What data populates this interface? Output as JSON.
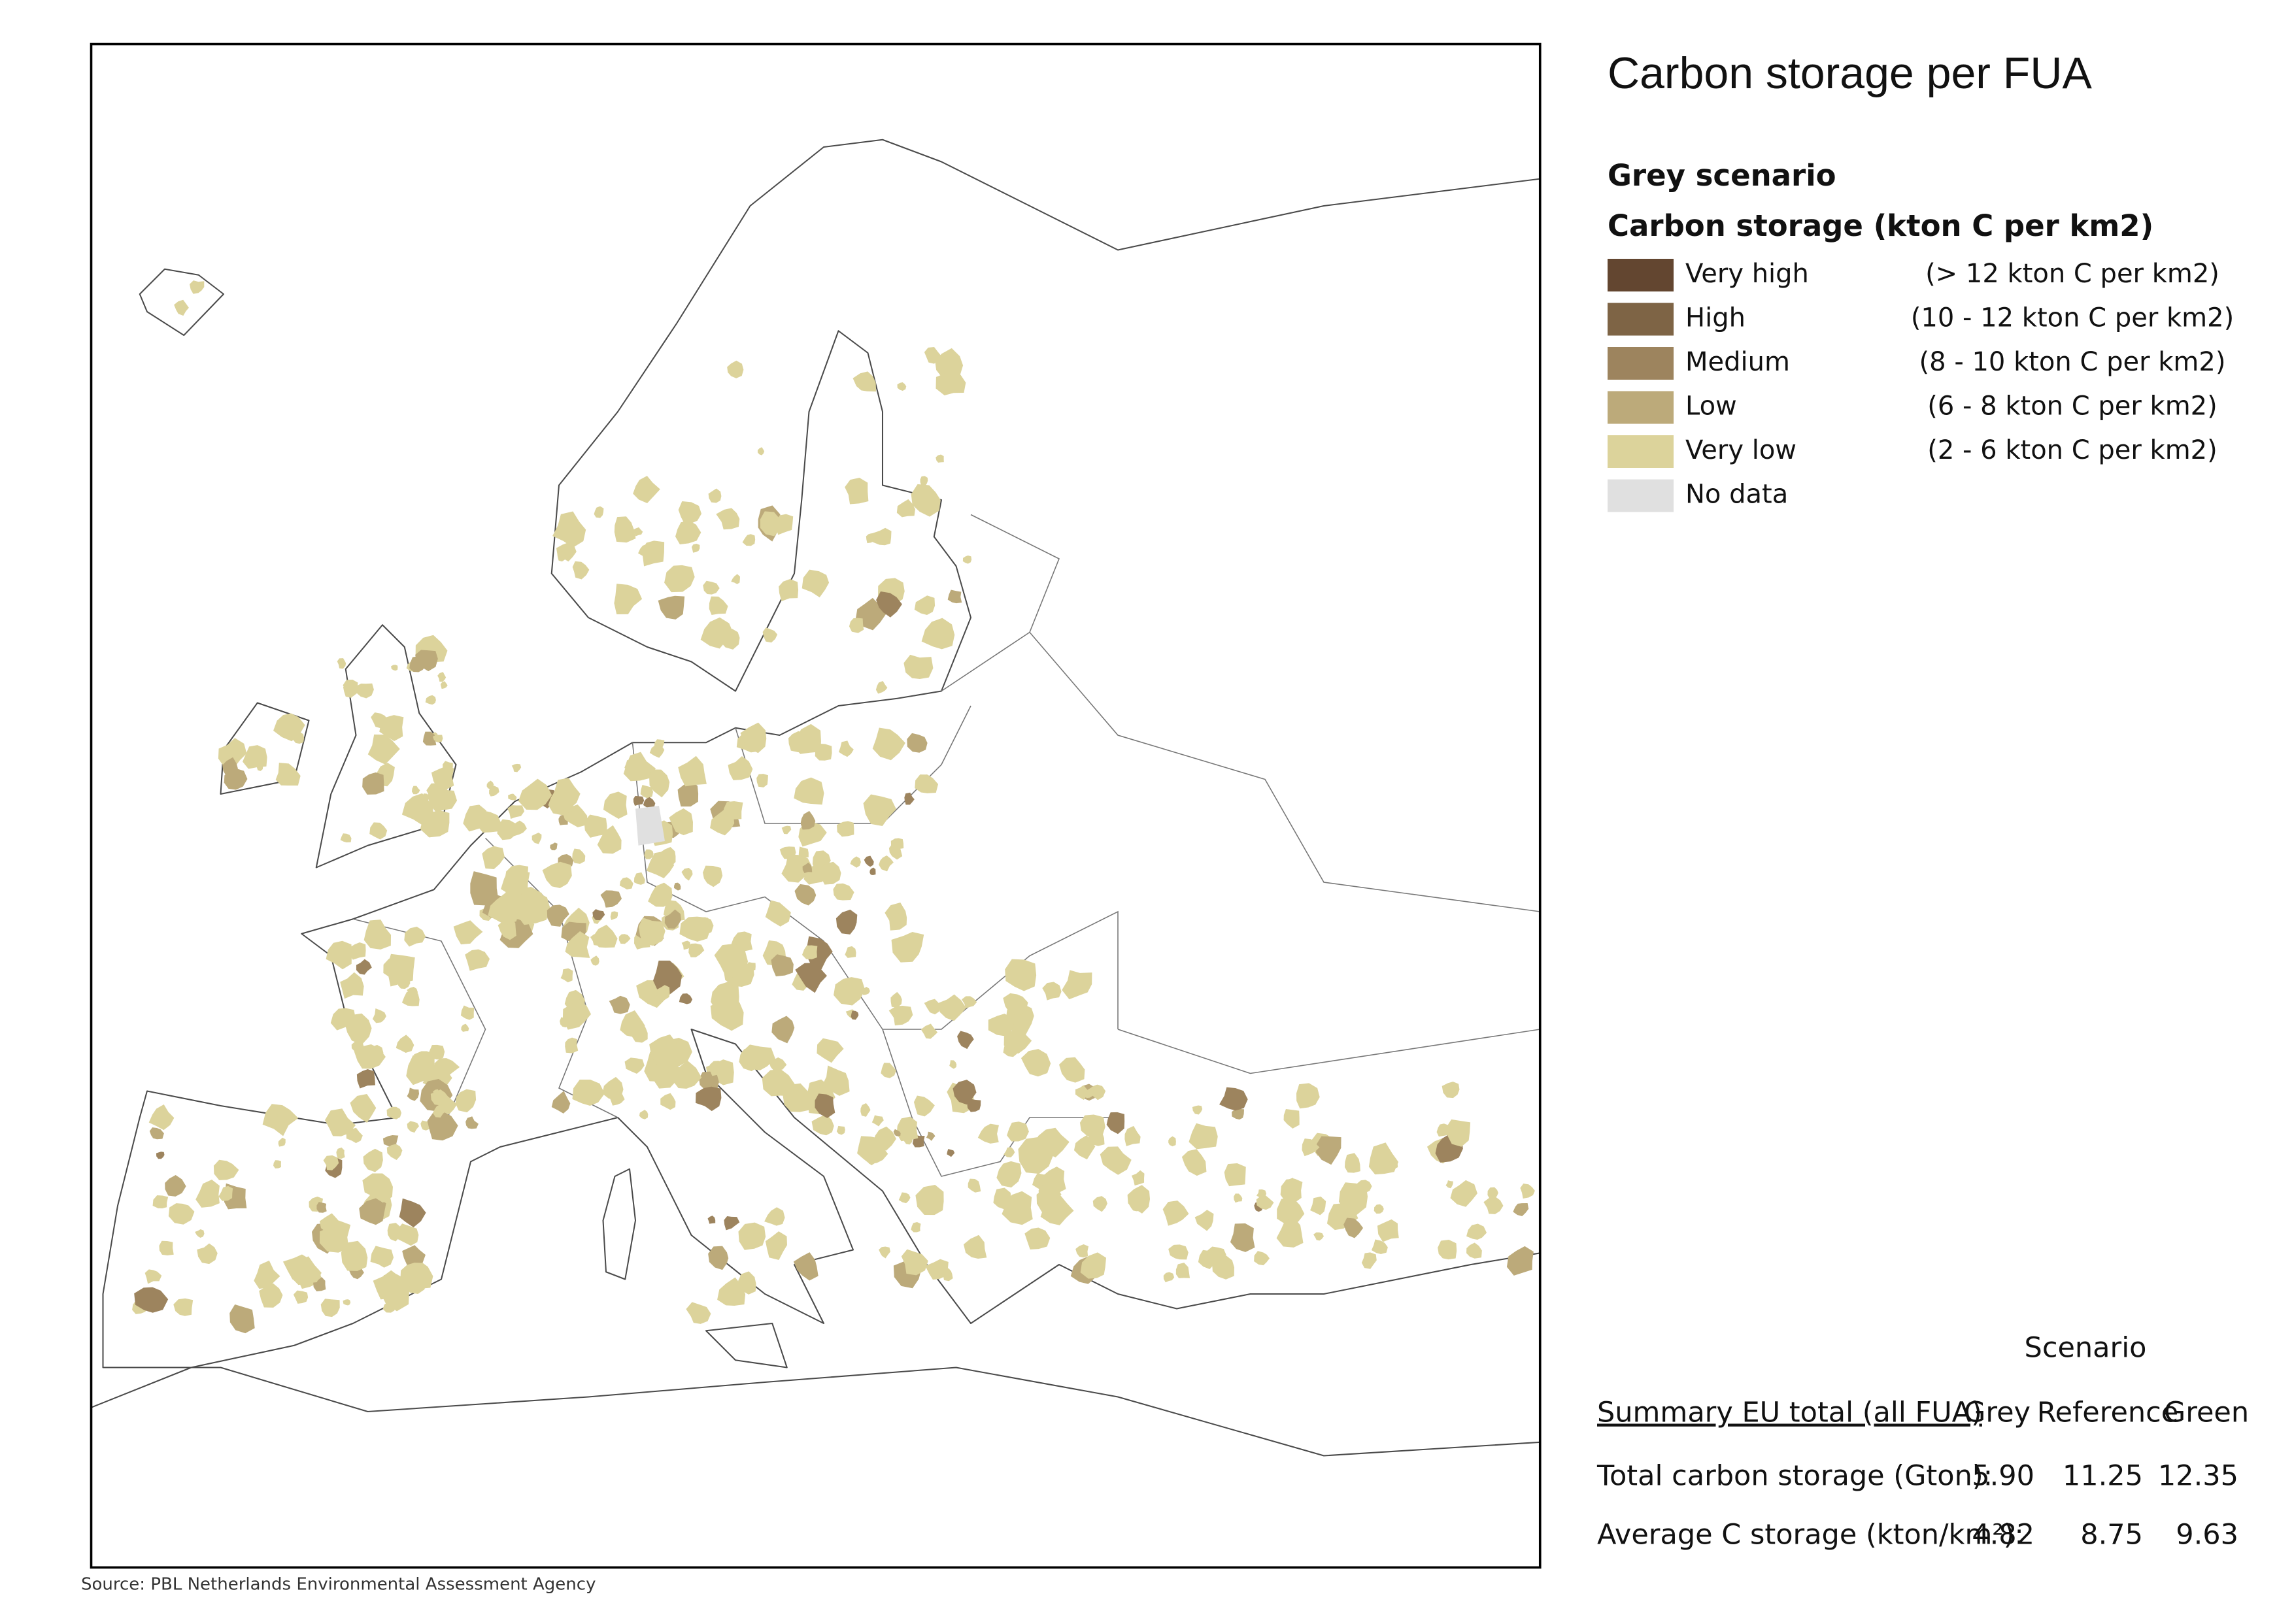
{
  "title": "Carbon storage per FUA",
  "scenario": "Grey scenario",
  "legend": {
    "title": "Carbon storage (kton C per km2)",
    "items": [
      {
        "label": "Very high",
        "range": "(> 12 kton C per km2)",
        "color": "#634630"
      },
      {
        "label": "High",
        "range": "(10 - 12 kton C per km2)",
        "color": "#7e6445"
      },
      {
        "label": "Medium",
        "range": "(8 - 10 kton C per km2)",
        "color": "#9d845e"
      },
      {
        "label": "Low",
        "range": "(6 - 8 kton C per km2)",
        "color": "#bcaa7a"
      },
      {
        "label": "Very low",
        "range": "(2 - 6 kton C per km2)",
        "color": "#dcd39b"
      },
      {
        "label": "No data",
        "color": "#e0e0e0"
      }
    ]
  },
  "summary": {
    "heading": "Scenario",
    "columns": [
      "Summary EU total (all FUA)",
      "Grey",
      "Reference",
      "Green"
    ],
    "rows": [
      [
        "Total carbon storage (Gton):",
        "5.90",
        "11.25",
        "12.35"
      ],
      [
        "Average C storage (kton/km²):",
        "4.82",
        "8.75",
        "9.63"
      ]
    ]
  },
  "source": "Source: PBL Netherlands Environmental Assessment Agency"
}
